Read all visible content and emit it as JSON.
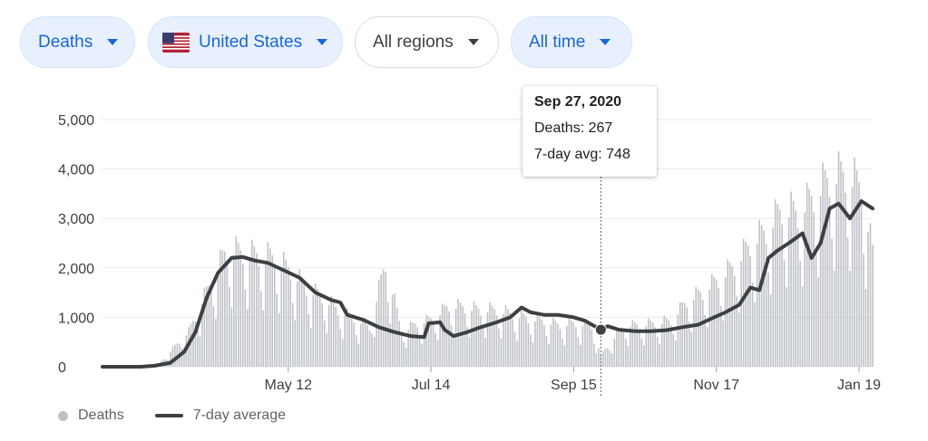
{
  "filters": {
    "metric": "Deaths",
    "country": "United States",
    "region": "All regions",
    "time": "All time"
  },
  "colors": {
    "accent": "#1967d2",
    "bars": "#bdc1c6",
    "line": "#3c4043",
    "grid": "#e8eaed"
  },
  "tooltip": {
    "date": "Sep 27, 2020",
    "deaths": "Deaths: 267",
    "avg": "7-day avg: 748"
  },
  "legend": {
    "bars_label": "Deaths",
    "line_label": "7-day average"
  },
  "chart_data": {
    "type": "bar",
    "title": "",
    "xlabel": "",
    "ylabel": "",
    "ylim": [
      0,
      5000
    ],
    "y_ticks": [
      0,
      1000,
      2000,
      3000,
      4000,
      5000
    ],
    "y_tick_labels": [
      "0",
      "1,000",
      "2,000",
      "3,000",
      "4,000",
      "5,000"
    ],
    "x_start": "2020-02-20",
    "x_end": "2021-01-25",
    "x_ticks": [
      {
        "date": "2020-05-12",
        "label": "May 12"
      },
      {
        "date": "2020-07-14",
        "label": "Jul 14"
      },
      {
        "date": "2020-09-15",
        "label": "Sep 15"
      },
      {
        "date": "2020-11-17",
        "label": "Nov 17"
      },
      {
        "date": "2021-01-19",
        "label": "Jan 19"
      }
    ],
    "grid": true,
    "legend_position": "bottom-left",
    "highlight": {
      "date": "2020-09-27",
      "deaths": 267,
      "avg": 748
    },
    "series": [
      {
        "name": "Deaths",
        "kind": "bars",
        "approx_weekly_peaks": [
          [
            "2020-03-01",
            0
          ],
          [
            "2020-03-15",
            20
          ],
          [
            "2020-03-29",
            800
          ],
          [
            "2020-04-05",
            1600
          ],
          [
            "2020-04-15",
            2700
          ],
          [
            "2020-04-22",
            2600
          ],
          [
            "2020-04-29",
            2550
          ],
          [
            "2020-05-06",
            2500
          ],
          [
            "2020-05-13",
            2200
          ],
          [
            "2020-05-20",
            1800
          ],
          [
            "2020-05-27",
            1600
          ],
          [
            "2020-06-03",
            1300
          ],
          [
            "2020-06-10",
            1100
          ],
          [
            "2020-06-17",
            900
          ],
          [
            "2020-06-24",
            2400
          ],
          [
            "2020-07-01",
            800
          ],
          [
            "2020-07-08",
            1000
          ],
          [
            "2020-07-15",
            1100
          ],
          [
            "2020-07-22",
            1400
          ],
          [
            "2020-07-29",
            1350
          ],
          [
            "2020-08-05",
            1300
          ],
          [
            "2020-08-12",
            1300
          ],
          [
            "2020-08-19",
            1200
          ],
          [
            "2020-08-26",
            1100
          ],
          [
            "2020-09-02",
            1050
          ],
          [
            "2020-09-09",
            950
          ],
          [
            "2020-09-16",
            1000
          ],
          [
            "2020-09-23",
            950
          ],
          [
            "2020-09-27",
            267
          ],
          [
            "2020-10-07",
            950
          ],
          [
            "2020-10-14",
            950
          ],
          [
            "2020-10-21",
            1000
          ],
          [
            "2020-10-28",
            1050
          ],
          [
            "2020-11-04",
            1500
          ],
          [
            "2020-11-11",
            1700
          ],
          [
            "2020-11-18",
            2000
          ],
          [
            "2020-11-25",
            2300
          ],
          [
            "2020-12-02",
            2800
          ],
          [
            "2020-12-09",
            3100
          ],
          [
            "2020-12-16",
            3600
          ],
          [
            "2020-12-23",
            3500
          ],
          [
            "2020-12-30",
            3900
          ],
          [
            "2021-01-06",
            4300
          ],
          [
            "2021-01-13",
            4400
          ],
          [
            "2021-01-20",
            4100
          ],
          [
            "2021-01-25",
            2600
          ]
        ]
      },
      {
        "name": "7-day average",
        "kind": "line",
        "points": [
          [
            "2020-02-20",
            0
          ],
          [
            "2020-03-08",
            0
          ],
          [
            "2020-03-14",
            20
          ],
          [
            "2020-03-21",
            80
          ],
          [
            "2020-03-27",
            300
          ],
          [
            "2020-04-01",
            700
          ],
          [
            "2020-04-06",
            1400
          ],
          [
            "2020-04-11",
            1900
          ],
          [
            "2020-04-17",
            2200
          ],
          [
            "2020-04-22",
            2220
          ],
          [
            "2020-04-27",
            2150
          ],
          [
            "2020-05-03",
            2100
          ],
          [
            "2020-05-10",
            1950
          ],
          [
            "2020-05-17",
            1800
          ],
          [
            "2020-05-24",
            1500
          ],
          [
            "2020-05-31",
            1350
          ],
          [
            "2020-06-04",
            1300
          ],
          [
            "2020-06-07",
            1050
          ],
          [
            "2020-06-14",
            950
          ],
          [
            "2020-06-21",
            800
          ],
          [
            "2020-06-28",
            700
          ],
          [
            "2020-07-05",
            620
          ],
          [
            "2020-07-11",
            600
          ],
          [
            "2020-07-13",
            880
          ],
          [
            "2020-07-18",
            900
          ],
          [
            "2020-07-20",
            750
          ],
          [
            "2020-07-24",
            620
          ],
          [
            "2020-07-30",
            700
          ],
          [
            "2020-08-05",
            800
          ],
          [
            "2020-08-12",
            900
          ],
          [
            "2020-08-18",
            1000
          ],
          [
            "2020-08-23",
            1200
          ],
          [
            "2020-08-27",
            1100
          ],
          [
            "2020-09-02",
            1050
          ],
          [
            "2020-09-08",
            1050
          ],
          [
            "2020-09-15",
            1000
          ],
          [
            "2020-09-20",
            930
          ],
          [
            "2020-09-27",
            748
          ],
          [
            "2020-09-30",
            820
          ],
          [
            "2020-10-05",
            750
          ],
          [
            "2020-10-12",
            720
          ],
          [
            "2020-10-19",
            720
          ],
          [
            "2020-10-26",
            740
          ],
          [
            "2020-11-02",
            800
          ],
          [
            "2020-11-09",
            850
          ],
          [
            "2020-11-16",
            1000
          ],
          [
            "2020-11-21",
            1100
          ],
          [
            "2020-11-27",
            1250
          ],
          [
            "2020-12-02",
            1600
          ],
          [
            "2020-12-06",
            1550
          ],
          [
            "2020-12-10",
            2200
          ],
          [
            "2020-12-14",
            2350
          ],
          [
            "2020-12-19",
            2500
          ],
          [
            "2020-12-25",
            2700
          ],
          [
            "2020-12-29",
            2200
          ],
          [
            "2021-01-02",
            2500
          ],
          [
            "2021-01-06",
            3200
          ],
          [
            "2021-01-10",
            3300
          ],
          [
            "2021-01-15",
            3000
          ],
          [
            "2021-01-20",
            3350
          ],
          [
            "2021-01-25",
            3200
          ]
        ]
      }
    ]
  }
}
